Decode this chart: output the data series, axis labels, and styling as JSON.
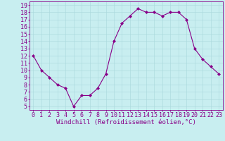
{
  "x": [
    0,
    1,
    2,
    3,
    4,
    5,
    6,
    7,
    8,
    9,
    10,
    11,
    12,
    13,
    14,
    15,
    16,
    17,
    18,
    19,
    20,
    21,
    22,
    23
  ],
  "y": [
    12,
    10,
    9,
    8,
    7.5,
    5,
    6.5,
    6.5,
    7.5,
    9.5,
    14,
    16.5,
    17.5,
    18.5,
    18,
    18,
    17.5,
    18,
    18,
    17,
    13,
    11.5,
    10.5,
    9.5
  ],
  "line_color": "#880088",
  "marker": "D",
  "marker_size": 2.0,
  "bg_color": "#c8eef0",
  "grid_color": "#a8d8dc",
  "xlabel": "Windchill (Refroidissement éolien,°C)",
  "xlabel_color": "#880088",
  "xlabel_fontsize": 6.5,
  "ylabel_ticks": [
    5,
    6,
    7,
    8,
    9,
    10,
    11,
    12,
    13,
    14,
    15,
    16,
    17,
    18,
    19
  ],
  "xtick_labels": [
    "0",
    "1",
    "2",
    "3",
    "4",
    "5",
    "6",
    "7",
    "8",
    "9",
    "10",
    "11",
    "12",
    "13",
    "14",
    "15",
    "16",
    "17",
    "18",
    "19",
    "20",
    "21",
    "22",
    "23"
  ],
  "xlim": [
    -0.5,
    23.5
  ],
  "ylim": [
    4.5,
    19.5
  ],
  "tick_color": "#880088",
  "tick_fontsize": 6.0,
  "line_width": 0.8
}
